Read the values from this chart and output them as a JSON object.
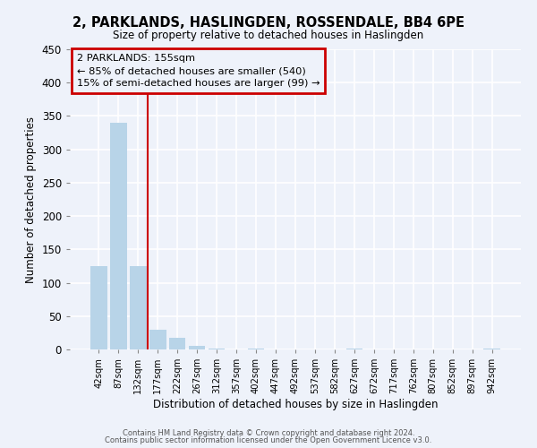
{
  "title": "2, PARKLANDS, HASLINGDEN, ROSSENDALE, BB4 6PE",
  "subtitle": "Size of property relative to detached houses in Haslingden",
  "xlabel": "Distribution of detached houses by size in Haslingden",
  "ylabel": "Number of detached properties",
  "bar_color": "#b8d4e8",
  "vline_color": "#cc0000",
  "annotation_title": "2 PARKLANDS: 155sqm",
  "annotation_line1": "← 85% of detached houses are smaller (540)",
  "annotation_line2": "15% of semi-detached houses are larger (99) →",
  "annotation_box_color": "#cc0000",
  "footer1": "Contains HM Land Registry data © Crown copyright and database right 2024.",
  "footer2": "Contains public sector information licensed under the Open Government Licence v3.0.",
  "bin_labels": [
    "42sqm",
    "87sqm",
    "132sqm",
    "177sqm",
    "222sqm",
    "267sqm",
    "312sqm",
    "357sqm",
    "402sqm",
    "447sqm",
    "492sqm",
    "537sqm",
    "582sqm",
    "627sqm",
    "672sqm",
    "717sqm",
    "762sqm",
    "807sqm",
    "852sqm",
    "897sqm",
    "942sqm"
  ],
  "bar_heights": [
    125,
    340,
    125,
    29,
    18,
    6,
    2,
    0,
    2,
    0,
    0,
    0,
    0,
    2,
    0,
    0,
    0,
    0,
    0,
    0,
    2
  ],
  "ylim": [
    0,
    450
  ],
  "yticks": [
    0,
    50,
    100,
    150,
    200,
    250,
    300,
    350,
    400,
    450
  ],
  "bg_color": "#eef2fa",
  "grid_color": "#ffffff",
  "vline_xidx": 2.511
}
